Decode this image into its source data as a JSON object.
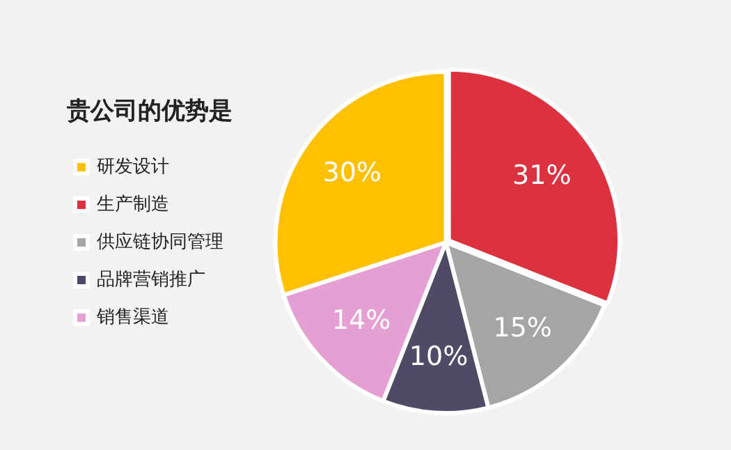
{
  "chart_data": {
    "type": "pie",
    "title": "贵公司的优势是",
    "categories": [
      "研发设计",
      "生产制造",
      "供应链协同管理",
      "品牌营销推广",
      "销售渠道"
    ],
    "values": [
      30,
      31,
      15,
      10,
      14
    ],
    "colors": [
      "#ffc000",
      "#dc3240",
      "#a5a5a5",
      "#4f4a65",
      "#e59fd2"
    ],
    "value_labels": [
      "30%",
      "31%",
      "15%",
      "10%",
      "14%"
    ],
    "legend": "left"
  }
}
